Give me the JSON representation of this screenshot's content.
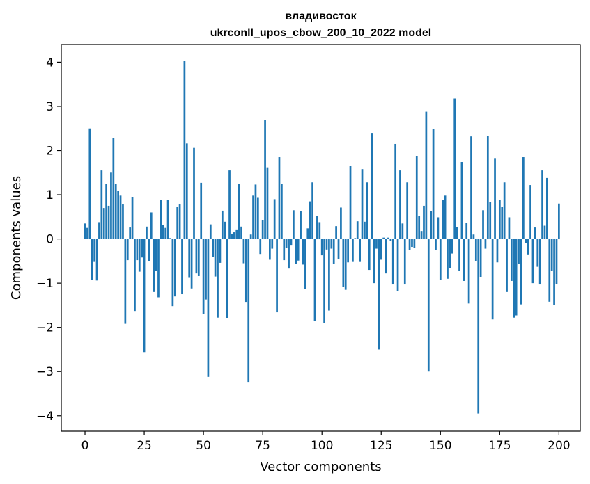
{
  "chart_data": {
    "type": "bar",
    "title": "владивосток",
    "subtitle": "ukrconll_upos_cbow_200_10_2022 model",
    "xlabel": "Vector components",
    "ylabel": "Components values",
    "xlim": [
      -10,
      209
    ],
    "ylim": [
      -4.35,
      4.4
    ],
    "xticks": [
      0,
      25,
      50,
      75,
      100,
      125,
      150,
      175,
      200
    ],
    "xtick_labels": [
      "0",
      "25",
      "50",
      "75",
      "100",
      "125",
      "150",
      "175",
      "200"
    ],
    "yticks": [
      -4,
      -3,
      -2,
      -1,
      0,
      1,
      2,
      3,
      4
    ],
    "ytick_labels": [
      "−4",
      "−3",
      "−2",
      "−1",
      "0",
      "1",
      "2",
      "3",
      "4"
    ],
    "bar_color": "#1f77b4",
    "grid": false,
    "values": [
      0.35,
      0.25,
      2.5,
      -0.93,
      -0.52,
      -0.94,
      0.38,
      1.55,
      0.7,
      1.25,
      0.75,
      1.5,
      2.28,
      1.25,
      1.08,
      0.98,
      0.78,
      -1.92,
      -0.48,
      0.26,
      0.95,
      -1.63,
      -0.48,
      -0.74,
      -0.42,
      -2.56,
      0.28,
      -0.5,
      0.6,
      -1.2,
      -0.72,
      -1.32,
      0.88,
      0.32,
      0.25,
      0.88,
      0.02,
      -1.52,
      -1.3,
      0.72,
      0.78,
      -1.25,
      4.03,
      2.16,
      -0.88,
      -1.12,
      2.06,
      -0.78,
      -0.84,
      1.27,
      -1.7,
      -1.37,
      -3.12,
      0.33,
      -0.4,
      -0.85,
      -1.78,
      -0.54,
      0.64,
      0.39,
      -1.8,
      1.55,
      0.12,
      0.15,
      0.2,
      1.25,
      0.28,
      -0.55,
      -1.44,
      -3.25,
      0.1,
      0.98,
      1.23,
      0.93,
      -0.34,
      0.42,
      2.7,
      1.62,
      -0.47,
      -0.22,
      0.9,
      -1.66,
      1.85,
      1.25,
      -0.48,
      -0.2,
      -0.67,
      -0.15,
      0.65,
      -0.57,
      -0.49,
      0.63,
      -0.58,
      -1.13,
      0.24,
      0.85,
      1.28,
      -1.85,
      0.52,
      0.38,
      -0.37,
      -1.9,
      -0.24,
      -1.62,
      -0.22,
      -0.57,
      0.29,
      -0.46,
      0.71,
      -1.08,
      -1.15,
      -0.53,
      1.66,
      -0.52,
      0.02,
      0.4,
      -0.52,
      1.58,
      0.39,
      1.28,
      -0.7,
      2.4,
      -1.0,
      -0.22,
      -2.5,
      -0.47,
      0.03,
      -0.78,
      0.03,
      -0.05,
      -1.03,
      2.15,
      -1.18,
      1.55,
      0.35,
      -1.03,
      1.28,
      -0.25,
      -0.18,
      -0.2,
      1.88,
      0.52,
      0.18,
      0.75,
      2.88,
      -3.0,
      0.63,
      2.48,
      -0.25,
      0.49,
      -0.92,
      0.89,
      0.98,
      -0.9,
      -0.66,
      -0.33,
      3.18,
      0.27,
      -0.72,
      1.74,
      -0.95,
      0.36,
      -1.46,
      2.32,
      0.1,
      -0.5,
      -3.95,
      -0.86,
      0.65,
      -0.22,
      2.33,
      0.84,
      -1.82,
      1.83,
      -0.53,
      0.88,
      0.73,
      1.28,
      -1.2,
      0.49,
      -0.95,
      -1.78,
      -1.73,
      -0.56,
      -1.48,
      1.85,
      -0.1,
      -0.35,
      1.22,
      -1.0,
      0.26,
      -0.63,
      -1.03,
      1.55,
      0.3,
      1.38,
      -1.42,
      -0.72,
      -1.5,
      -1.02,
      0.8
    ]
  }
}
